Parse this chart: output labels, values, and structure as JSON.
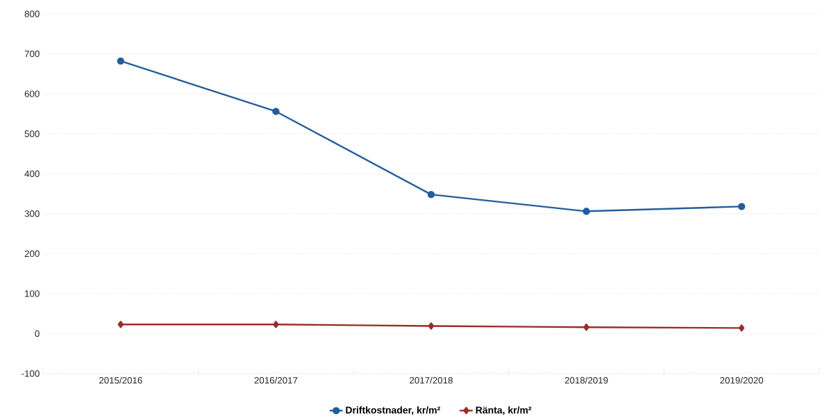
{
  "chart_data": {
    "type": "line",
    "categories": [
      "2015/2016",
      "2016/2017",
      "2017/2018",
      "2018/2019",
      "2019/2020"
    ],
    "series": [
      {
        "name": "Driftkostnader, kr/m²",
        "color": "#235d9c",
        "marker": "circle",
        "values": [
          682,
          556,
          348,
          306,
          318
        ]
      },
      {
        "name": "Ränta, kr/m²",
        "color": "#9c2a2a",
        "marker": "diamond",
        "values": [
          23,
          23,
          19,
          16,
          14
        ]
      }
    ],
    "ylim": [
      -100,
      800
    ],
    "yticks": [
      -100,
      0,
      100,
      200,
      300,
      400,
      500,
      600,
      700,
      800
    ],
    "grid": "y",
    "legend": "bottom",
    "line_style": "solid"
  }
}
